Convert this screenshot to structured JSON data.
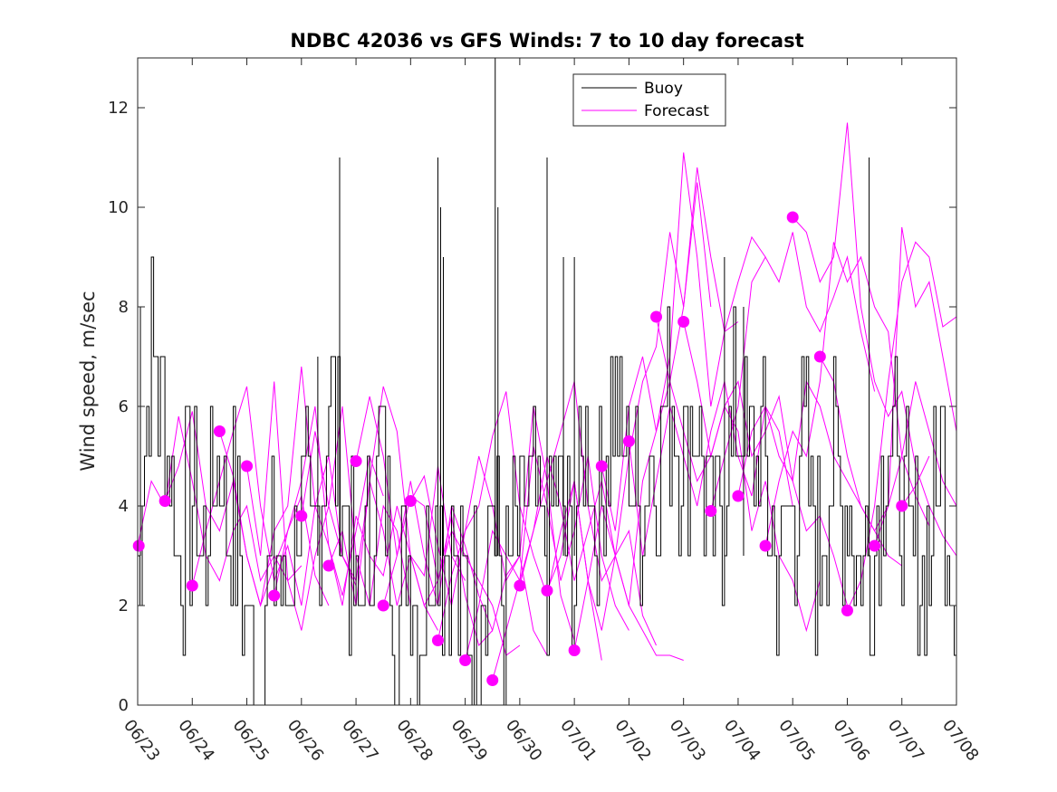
{
  "chart_data": {
    "type": "line",
    "title": "NDBC 42036 vs GFS Winds: 7 to 10 day forecast",
    "xlabel": "",
    "ylabel": "Wind speed, m/sec",
    "xlim": [
      "06/23",
      "07/08"
    ],
    "ylim": [
      0,
      13
    ],
    "yticks": [
      0,
      2,
      4,
      6,
      8,
      10,
      12
    ],
    "xticks": [
      "06/23",
      "06/24",
      "06/25",
      "06/26",
      "06/27",
      "06/28",
      "06/29",
      "06/30",
      "07/01",
      "07/02",
      "07/03",
      "07/04",
      "07/05",
      "07/06",
      "07/07",
      "07/08"
    ],
    "grid": false,
    "legend": {
      "position": "top-center",
      "entries": [
        "Buoy",
        "Forecast"
      ]
    },
    "colors": {
      "buoy": "#000000",
      "forecast": "#ff00ff",
      "axis": "#262626"
    },
    "buoy": {
      "name": "Buoy",
      "x_days": [
        0,
        0.25,
        0.5,
        0.75,
        1,
        1.25,
        1.5,
        1.75,
        2,
        2.25,
        2.5,
        2.75,
        3,
        3.25,
        3.5,
        3.75,
        4,
        4.25,
        4.5,
        4.75,
        5,
        5.25,
        5.5,
        5.75,
        6,
        6.25,
        6.5,
        6.75,
        7,
        7.25,
        7.5,
        7.75,
        8,
        8.25,
        8.5,
        8.75,
        9,
        9.25,
        9.5,
        9.75,
        10,
        10.25,
        10.5,
        10.75,
        11,
        11.25,
        11.5,
        11.75,
        12,
        12.25,
        12.5,
        12.75,
        13,
        13.25,
        13.5,
        13.75,
        14,
        14.25,
        14.5,
        14.75,
        15
      ],
      "values": [
        2,
        7,
        6,
        3,
        4,
        3,
        5,
        4,
        2,
        0,
        3,
        2,
        4,
        3,
        6,
        5,
        2,
        3,
        5,
        2,
        3,
        2,
        4,
        3,
        2,
        2,
        4,
        2,
        3,
        4,
        3,
        4,
        3,
        5,
        4,
        6,
        5,
        4,
        5,
        6,
        5,
        6,
        3,
        4,
        6,
        5,
        5,
        3,
        4,
        5,
        3,
        5,
        4,
        3,
        3,
        6,
        4,
        3,
        3,
        5,
        3
      ],
      "spikes": [
        {
          "x": 0.05,
          "y": 8
        },
        {
          "x": 3.7,
          "y": 11
        },
        {
          "x": 5.5,
          "y": 11
        },
        {
          "x": 5.55,
          "y": 10
        },
        {
          "x": 6.55,
          "y": 13
        },
        {
          "x": 6.6,
          "y": 10
        },
        {
          "x": 7.5,
          "y": 11
        },
        {
          "x": 7.8,
          "y": 9
        },
        {
          "x": 13.4,
          "y": 11
        },
        {
          "x": 8.0,
          "y": 9
        },
        {
          "x": 10.75,
          "y": 9
        },
        {
          "x": 5.6,
          "y": 9
        },
        {
          "x": 3.3,
          "y": 7
        },
        {
          "x": 11.1,
          "y": 8
        }
      ]
    },
    "forecast": {
      "name": "Forecast",
      "x_days_per_run": 3,
      "runs": [
        {
          "start": 0.0,
          "values": [
            3.2,
            4.5,
            4.0,
            5.8,
            4.5,
            3.0,
            2.5,
            3.5,
            4.0,
            2.5,
            3.0,
            2.5,
            2.8
          ]
        },
        {
          "start": 0.5,
          "values": [
            4.1,
            4.8,
            5.9,
            4.0,
            3.5,
            4.5,
            3.0,
            2.0,
            2.8,
            3.5,
            4.2,
            2.6,
            2.0
          ]
        },
        {
          "start": 1.0,
          "values": [
            2.4,
            3.5,
            4.5,
            5.5,
            6.4,
            4.0,
            2.5,
            3.2,
            2.0,
            4.0,
            5.0,
            3.0,
            2.4
          ]
        },
        {
          "start": 1.5,
          "values": [
            5.5,
            4.6,
            3.0,
            2.0,
            3.5,
            4.0,
            6.8,
            4.0,
            3.2,
            2.2,
            3.5,
            5.0,
            4.2
          ]
        },
        {
          "start": 2.0,
          "values": [
            4.8,
            3.0,
            6.5,
            2.5,
            1.5,
            3.0,
            4.0,
            6.0,
            3.0,
            2.0,
            4.0,
            3.5,
            2.0
          ]
        },
        {
          "start": 2.5,
          "values": [
            2.2,
            3.5,
            4.5,
            6.0,
            3.2,
            2.0,
            3.8,
            3.0,
            2.6,
            4.0,
            3.0,
            2.0,
            1.5
          ]
        },
        {
          "start": 3.0,
          "values": [
            3.8,
            5.5,
            4.0,
            3.0,
            2.5,
            4.5,
            3.5,
            2.0,
            3.0,
            2.6,
            4.8,
            3.0,
            2.5
          ]
        },
        {
          "start": 3.5,
          "values": [
            2.8,
            3.5,
            2.0,
            4.5,
            6.4,
            5.5,
            3.0,
            2.0,
            2.5,
            3.8,
            2.2,
            1.2,
            1.5
          ]
        },
        {
          "start": 4.0,
          "values": [
            4.9,
            6.2,
            5.0,
            3.0,
            4.2,
            4.0,
            2.5,
            3.5,
            3.0,
            2.5,
            2.0,
            1.0,
            1.2
          ]
        },
        {
          "start": 4.5,
          "values": [
            2.0,
            3.0,
            4.5,
            3.0,
            2.0,
            4.0,
            3.2,
            2.2,
            1.5,
            2.6,
            3.0,
            1.5,
            1.0
          ]
        },
        {
          "start": 5.0,
          "values": [
            4.1,
            4.6,
            3.2,
            2.0,
            3.5,
            5.0,
            4.0,
            2.5,
            3.0,
            6.0,
            4.5,
            2.2,
            1.3
          ]
        },
        {
          "start": 5.5,
          "values": [
            1.3,
            2.6,
            3.5,
            4.0,
            5.4,
            6.3,
            4.0,
            3.0,
            2.2,
            3.5,
            4.5,
            2.5,
            0.9
          ]
        },
        {
          "start": 6.0,
          "values": [
            0.9,
            2.0,
            3.5,
            3.0,
            2.5,
            5.2,
            4.0,
            2.5,
            3.5,
            5.0,
            3.0,
            2.0,
            1.5
          ]
        },
        {
          "start": 6.5,
          "values": [
            0.5,
            1.5,
            2.5,
            3.5,
            4.5,
            5.5,
            6.5,
            4.0,
            2.5,
            3.0,
            3.5,
            1.8,
            1.2
          ]
        },
        {
          "start": 7.0,
          "values": [
            2.4,
            3.5,
            5.0,
            4.0,
            2.5,
            3.5,
            4.5,
            3.0,
            2.0,
            1.5,
            1.0,
            1.0,
            0.9
          ]
        },
        {
          "start": 7.5,
          "values": [
            2.3,
            3.0,
            4.5,
            2.5,
            1.5,
            3.0,
            5.0,
            6.5,
            7.2,
            9.5,
            8.0,
            10.5,
            8.0
          ]
        },
        {
          "start": 8.0,
          "values": [
            1.1,
            2.5,
            4.0,
            3.0,
            2.0,
            4.5,
            5.5,
            7.0,
            11.1,
            9.0,
            6.0,
            7.5,
            7.7
          ]
        },
        {
          "start": 8.5,
          "values": [
            4.8,
            3.5,
            6.0,
            7.0,
            5.5,
            6.5,
            8.0,
            10.8,
            9.0,
            7.5,
            8.5,
            9.4,
            9.0
          ]
        },
        {
          "start": 9.0,
          "values": [
            5.3,
            3.0,
            4.5,
            6.0,
            5.0,
            4.0,
            5.5,
            6.5,
            5.0,
            4.2,
            6.0,
            5.5,
            4.0
          ]
        },
        {
          "start": 9.5,
          "values": [
            7.8,
            6.5,
            5.5,
            4.5,
            5.0,
            6.0,
            5.5,
            3.5,
            4.5,
            3.0,
            2.5,
            1.5,
            2.5
          ]
        },
        {
          "start": 10.0,
          "values": [
            7.7,
            6.5,
            5.0,
            6.0,
            6.5,
            5.0,
            5.5,
            6.2,
            4.5,
            3.5,
            3.8,
            3.0,
            2.0
          ]
        },
        {
          "start": 10.5,
          "values": [
            3.9,
            5.0,
            6.0,
            8.5,
            9.0,
            8.5,
            9.5,
            8.0,
            7.5,
            8.2,
            9.0,
            7.5,
            6.3
          ]
        },
        {
          "start": 11.0,
          "values": [
            4.2,
            5.5,
            6.0,
            5.0,
            4.5,
            6.5,
            6.0,
            5.0,
            4.5,
            4.0,
            3.5,
            3.0,
            2.8
          ]
        },
        {
          "start": 11.5,
          "values": [
            3.2,
            4.5,
            5.5,
            5.0,
            6.5,
            9.3,
            8.5,
            9.0,
            8.0,
            7.5,
            5.0,
            4.2,
            3.6
          ]
        },
        {
          "start": 12.0,
          "values": [
            9.8,
            9.5,
            8.5,
            9.0,
            11.7,
            8.0,
            6.5,
            5.8,
            6.3,
            4.8,
            4.0,
            3.4,
            3.0
          ]
        },
        {
          "start": 12.5,
          "values": [
            7.0,
            6.5,
            5.0,
            4.0,
            3.5,
            4.0,
            9.6,
            8.0,
            8.5,
            7.0,
            5.5,
            3.0,
            1.6
          ]
        },
        {
          "start": 13.0,
          "values": [
            1.9,
            2.5,
            4.0,
            6.5,
            8.5,
            9.3,
            9.0,
            7.6,
            7.8,
            6.0,
            5.0,
            4.5,
            3.6
          ]
        },
        {
          "start": 13.5,
          "values": [
            3.2,
            4.0,
            5.0,
            6.5,
            5.5,
            4.5,
            4.0,
            3.5,
            2.5,
            2.0,
            1.6
          ]
        },
        {
          "start": 14.0,
          "values": [
            4.0,
            4.4,
            5.0
          ]
        }
      ],
      "markers": [
        {
          "x": 0.02,
          "y": 3.2
        },
        {
          "x": 0.5,
          "y": 4.1
        },
        {
          "x": 1.0,
          "y": 2.4
        },
        {
          "x": 1.5,
          "y": 5.5
        },
        {
          "x": 2.0,
          "y": 4.8
        },
        {
          "x": 2.5,
          "y": 2.2
        },
        {
          "x": 3.0,
          "y": 3.8
        },
        {
          "x": 3.5,
          "y": 2.8
        },
        {
          "x": 4.0,
          "y": 4.9
        },
        {
          "x": 4.5,
          "y": 2.0
        },
        {
          "x": 5.0,
          "y": 4.1
        },
        {
          "x": 5.5,
          "y": 1.3
        },
        {
          "x": 6.0,
          "y": 0.9
        },
        {
          "x": 6.5,
          "y": 0.5
        },
        {
          "x": 7.0,
          "y": 2.4
        },
        {
          "x": 7.5,
          "y": 2.3
        },
        {
          "x": 8.0,
          "y": 1.1
        },
        {
          "x": 8.5,
          "y": 4.8
        },
        {
          "x": 9.0,
          "y": 5.3
        },
        {
          "x": 9.5,
          "y": 7.8
        },
        {
          "x": 10.0,
          "y": 7.7
        },
        {
          "x": 10.5,
          "y": 3.9
        },
        {
          "x": 11.0,
          "y": 4.2
        },
        {
          "x": 11.5,
          "y": 3.2
        },
        {
          "x": 12.0,
          "y": 9.8
        },
        {
          "x": 12.5,
          "y": 7.0
        },
        {
          "x": 13.0,
          "y": 1.9
        },
        {
          "x": 13.5,
          "y": 3.2
        },
        {
          "x": 14.0,
          "y": 4.0
        }
      ]
    }
  }
}
